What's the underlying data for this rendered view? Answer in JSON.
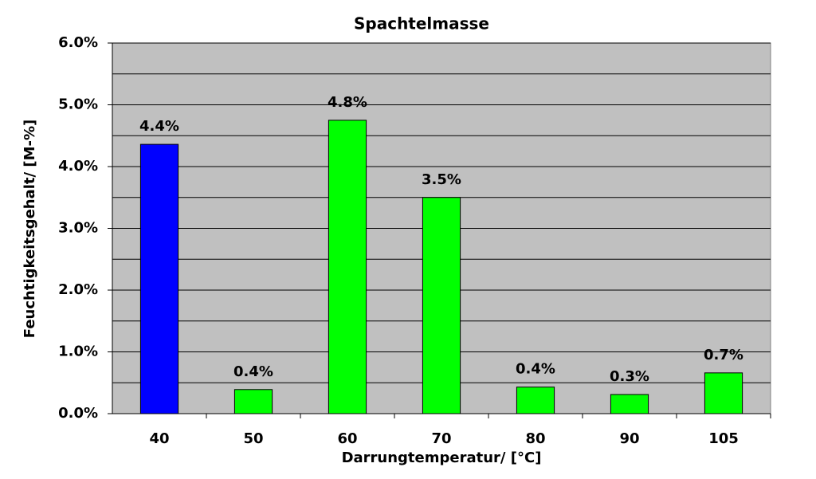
{
  "chart_data": {
    "type": "bar",
    "title": "Spachtelmasse",
    "x_label": "Darrungtemperatur/ [°C]",
    "y_label": "Feuchtigkeitsgehalt/ [M-%]",
    "categories": [
      "40",
      "50",
      "60",
      "70",
      "80",
      "90",
      "105"
    ],
    "values": [
      4.36,
      0.39,
      4.75,
      3.5,
      0.43,
      0.31,
      0.66
    ],
    "value_labels": [
      "4.4%",
      "0.4%",
      "4.8%",
      "3.5%",
      "0.4%",
      "0.3%",
      "0.7%"
    ],
    "colors": [
      "#0000ff",
      "#00ff00",
      "#00ff00",
      "#00ff00",
      "#00ff00",
      "#00ff00",
      "#00ff00"
    ],
    "ylim": [
      0,
      6
    ],
    "yticks": [
      {
        "value": 0,
        "label": "0.0%"
      },
      {
        "value": 1,
        "label": "1.0%"
      },
      {
        "value": 2,
        "label": "2.0%"
      },
      {
        "value": 3,
        "label": "3.0%"
      },
      {
        "value": 4,
        "label": "4.0%"
      },
      {
        "value": 5,
        "label": "5.0%"
      },
      {
        "value": 6,
        "label": "6.0%"
      }
    ],
    "minor_yticks": [
      0.5,
      1.5,
      2.5,
      3.5,
      4.5,
      5.5
    ],
    "grid": true,
    "plot_background": "#c0c0c0"
  }
}
